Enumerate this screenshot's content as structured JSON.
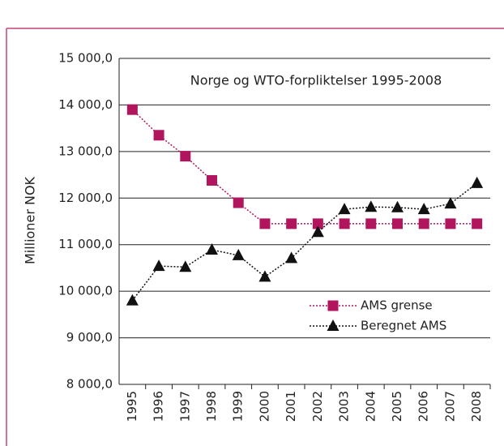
{
  "chart_data": {
    "type": "line",
    "title": "Norge og WTO-forpliktelser 1995-2008",
    "y_label": "Millioner NOK",
    "categories": [
      "1995",
      "1996",
      "1997",
      "1998",
      "1999",
      "2000",
      "2001",
      "2002",
      "2003",
      "2004",
      "2005",
      "2006",
      "2007",
      "2008"
    ],
    "series": [
      {
        "name": "AMS grense",
        "color": "#b0155e",
        "marker": "square",
        "values": [
          13900,
          13350,
          12900,
          12380,
          11900,
          11450,
          11450,
          11450,
          11450,
          11450,
          11450,
          11450,
          11450,
          11450
        ]
      },
      {
        "name": "Beregnet AMS",
        "color": "#111111",
        "marker": "triangle",
        "values": [
          9800,
          10540,
          10520,
          10890,
          10770,
          10310,
          10710,
          11270,
          11760,
          11810,
          11800,
          11760,
          11880,
          12320
        ]
      }
    ],
    "ylim": [
      8000,
      15000
    ],
    "yticks": [
      {
        "value": 8000,
        "label": "8 000,0"
      },
      {
        "value": 9000,
        "label": "9 000,0"
      },
      {
        "value": 10000,
        "label": "10 000,0"
      },
      {
        "value": 11000,
        "label": "11 000,0"
      },
      {
        "value": 12000,
        "label": "12 000,0"
      },
      {
        "value": 13000,
        "label": "13 000,0"
      },
      {
        "value": 14000,
        "label": "14 000,0"
      },
      {
        "value": 15000,
        "label": "15 000,0"
      }
    ],
    "grid": true,
    "legend": "lower right"
  }
}
